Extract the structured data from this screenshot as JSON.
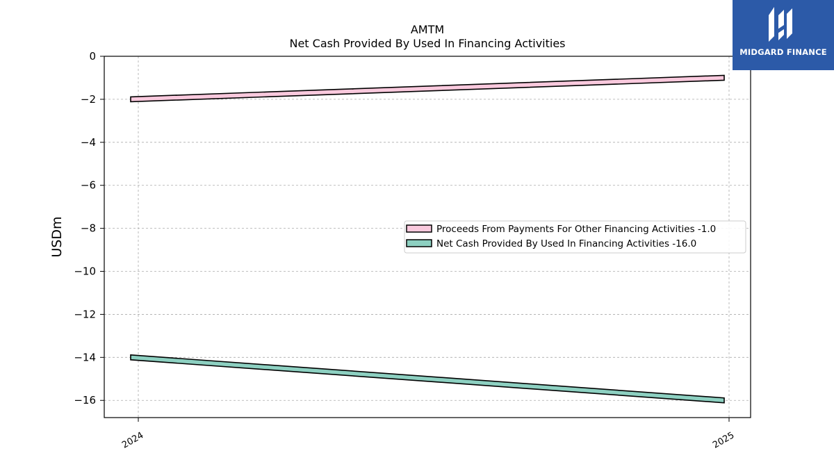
{
  "header": {
    "ticker": "AMTM",
    "title": "Net Cash Provided By Used In Financing Activities"
  },
  "logo": {
    "text": "MIDGARD FINANCE",
    "background": "#2c5aa8",
    "icon": "midgard-logo-icon"
  },
  "chart_data": {
    "type": "line",
    "title": "AMTM",
    "subtitle": "Net Cash Provided By Used In Financing Activities",
    "xlabel": "",
    "ylabel": "USDm",
    "categories": [
      "2024",
      "2025"
    ],
    "ylim": [
      -16.8,
      0
    ],
    "yticks": [
      0,
      -2,
      -4,
      -6,
      -8,
      -10,
      -12,
      -14,
      -16
    ],
    "ytick_labels": [
      "0",
      "−2",
      "−4",
      "−6",
      "−8",
      "−10",
      "−12",
      "−14",
      "−16"
    ],
    "grid": true,
    "legend_position": "center-right",
    "series": [
      {
        "name": "Proceeds From Payments For Other Financing Activities",
        "legend_label": "Proceeds From Payments For Other Financing Activities  -1.0",
        "values": [
          -2.0,
          -1.0
        ],
        "color": "#f9c9dd"
      },
      {
        "name": "Net Cash Provided By Used In Financing Activities",
        "legend_label": "Net Cash Provided By Used In Financing Activities  -16.0",
        "values": [
          -14.0,
          -16.0
        ],
        "color": "#8dd0c1"
      }
    ]
  }
}
